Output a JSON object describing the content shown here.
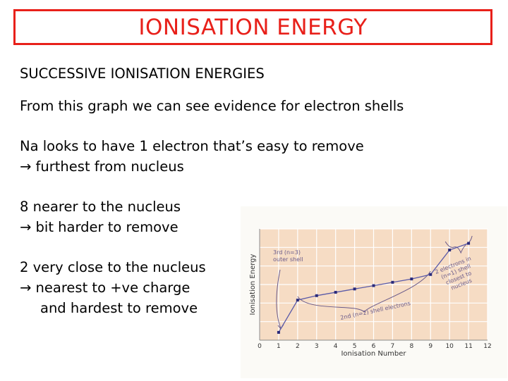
{
  "slide": {
    "title": "IONISATION ENERGY",
    "subtitle": "SUCCESSIVE IONISATION ENERGIES",
    "line1": "From this graph we can see evidence for electron shells",
    "line2": "Na looks to have 1 electron that’s easy to remove",
    "line3": "→ furthest from nucleus",
    "line4": "8 nearer to the nucleus",
    "line5": "→ bit harder to remove",
    "line6": "2 very close to the nucleus",
    "line7": "→ nearest to +ve charge",
    "line8": "and hardest to remove"
  },
  "colors": {
    "title": "#e8201a",
    "plot_bg": "#f6dcc4",
    "line": "#5a5aa8",
    "annotation": "#6a5a8a"
  },
  "chart_data": {
    "type": "line",
    "xlabel": "Ionisation Number",
    "ylabel": "Ionisation Energy",
    "x_ticks": [
      0,
      1,
      2,
      3,
      4,
      5,
      6,
      7,
      8,
      9,
      10,
      11,
      12
    ],
    "xlim": [
      0,
      12
    ],
    "ylim": [
      0,
      1
    ],
    "grid": true,
    "series": [
      {
        "x": [
          1,
          2,
          3,
          4,
          5,
          6,
          7,
          8,
          9,
          10,
          11
        ],
        "values": [
          0.07,
          0.36,
          0.4,
          0.43,
          0.46,
          0.49,
          0.52,
          0.55,
          0.59,
          0.81,
          0.87
        ]
      }
    ],
    "annotations": [
      {
        "label_lines": [
          "3rd (n=3)",
          "outer shell"
        ],
        "points_to": 1
      },
      {
        "label_lines": [
          "2nd (n=2) shell electrons"
        ],
        "spans": [
          2,
          9
        ]
      },
      {
        "label_lines": [
          "2 electrons in",
          "(n=1) shell",
          "closest to",
          "nucleus"
        ],
        "spans": [
          10,
          11
        ]
      }
    ]
  }
}
